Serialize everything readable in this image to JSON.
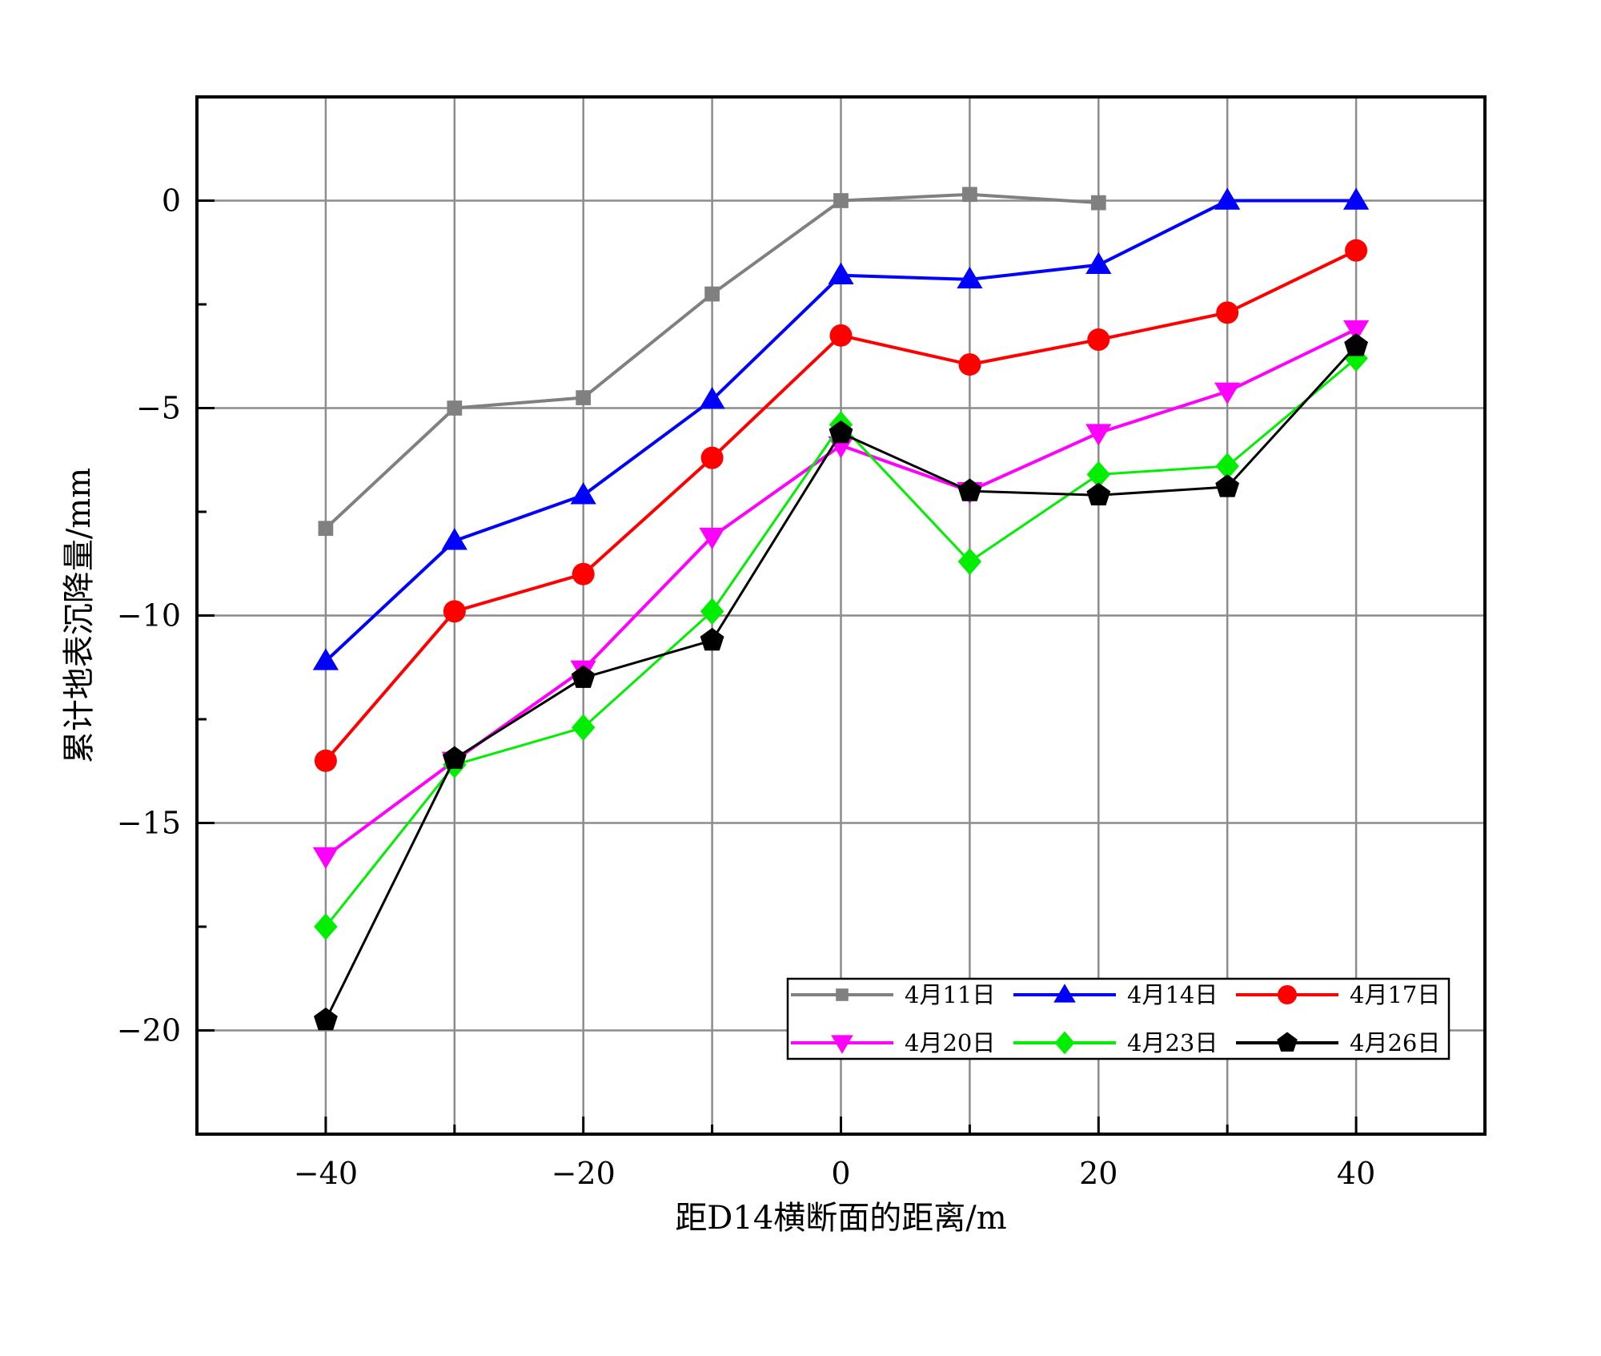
{
  "chart_data": {
    "type": "line",
    "xlabel": "距D14横断面的距离/m",
    "ylabel": "累计地表沉降量/mm",
    "xlim": [
      -50,
      50
    ],
    "ylim": [
      -22.5,
      2.5
    ],
    "xticks": [
      -40,
      -20,
      0,
      20,
      40
    ],
    "yticks": [
      0,
      -5,
      -10,
      -15,
      -20
    ],
    "xtick_labels": [
      "−40",
      "−20",
      "0",
      "20",
      "40"
    ],
    "ytick_labels": [
      "0",
      "−5",
      "−10",
      "−15",
      "−20"
    ],
    "grid": true,
    "legend_position": "bottom-right",
    "x": [
      -40,
      -30,
      -20,
      -10,
      0,
      10,
      20,
      30,
      40
    ],
    "series": [
      {
        "name": "4月11日",
        "color": "#808080",
        "marker": "square",
        "values": [
          -7.9,
          -5.0,
          -4.75,
          -2.25,
          0.0,
          0.15,
          -0.05,
          null,
          null
        ]
      },
      {
        "name": "4月14日",
        "color": "#0000ff",
        "marker": "triangle-up",
        "values": [
          -11.1,
          -8.2,
          -7.1,
          -4.8,
          -1.8,
          -1.9,
          -1.55,
          0.0,
          0.0
        ]
      },
      {
        "name": "4月17日",
        "color": "#ff0000",
        "marker": "circle",
        "values": [
          -13.5,
          -9.9,
          -9.0,
          -6.2,
          -3.25,
          -3.95,
          -3.35,
          -2.7,
          -1.2
        ]
      },
      {
        "name": "4月20日",
        "color": "#ff00ff",
        "marker": "triangle-down",
        "values": [
          -15.8,
          -13.5,
          -11.3,
          -8.1,
          -5.9,
          -7.0,
          -5.6,
          -4.6,
          -3.1
        ]
      },
      {
        "name": "4月23日",
        "color": "#00ee00",
        "marker": "diamond",
        "values": [
          -17.5,
          -13.6,
          -12.7,
          -9.9,
          -5.4,
          -8.7,
          -6.6,
          -6.4,
          -3.8
        ]
      },
      {
        "name": "4月26日",
        "color": "#000000",
        "marker": "pentagon",
        "values": [
          -19.75,
          -13.45,
          -11.5,
          -10.6,
          -5.6,
          -7.0,
          -7.1,
          -6.9,
          -3.5
        ]
      }
    ]
  }
}
